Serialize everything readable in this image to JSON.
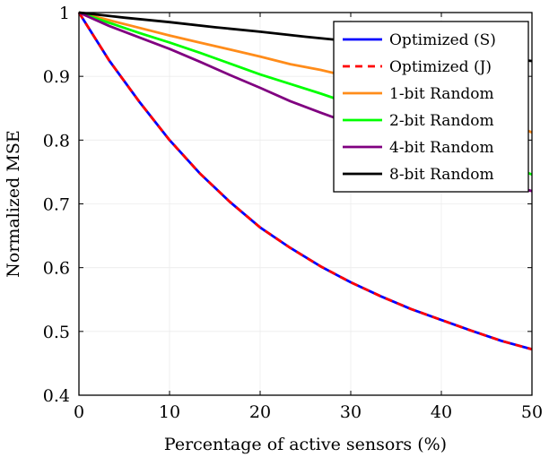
{
  "chart_data": {
    "type": "line",
    "xlabel": "Percentage of active sensors (%)",
    "ylabel": "Normalized MSE",
    "xlim": [
      0,
      50
    ],
    "ylim": [
      0.4,
      1
    ],
    "xticks": [
      "0",
      "10",
      "20",
      "30",
      "40",
      "50"
    ],
    "yticks": [
      "0.4",
      "0.5",
      "0.6",
      "0.7",
      "0.8",
      "0.9",
      "1"
    ],
    "grid": true,
    "legend_position": "top-right",
    "series": [
      {
        "name": "Optimized (S)",
        "color": "#0000ff",
        "dash": "solid",
        "x": [
          0,
          3.33,
          6.67,
          10,
          13.33,
          16.67,
          20,
          23.33,
          26.67,
          30,
          33.33,
          36.67,
          40,
          43.33,
          46.67,
          50
        ],
        "y": [
          1.0,
          0.925,
          0.86,
          0.8,
          0.748,
          0.703,
          0.663,
          0.631,
          0.602,
          0.577,
          0.555,
          0.535,
          0.518,
          0.501,
          0.485,
          0.472
        ]
      },
      {
        "name": "Optimized (J)",
        "color": "#ff0000",
        "dash": "dashed",
        "x": [
          0,
          3.33,
          6.67,
          10,
          13.33,
          16.67,
          20,
          23.33,
          26.67,
          30,
          33.33,
          36.67,
          40,
          43.33,
          46.67,
          50
        ],
        "y": [
          1.0,
          0.925,
          0.86,
          0.8,
          0.748,
          0.703,
          0.663,
          0.631,
          0.602,
          0.577,
          0.555,
          0.535,
          0.518,
          0.501,
          0.485,
          0.472
        ]
      },
      {
        "name": "1-bit Random",
        "color": "#ff8c1a",
        "dash": "solid",
        "x": [
          0,
          3.33,
          6.67,
          10,
          13.33,
          16.67,
          20,
          23.33,
          26.67,
          30,
          33.33,
          36.67,
          40,
          43.33,
          46.67,
          50
        ],
        "y": [
          1.0,
          0.988,
          0.976,
          0.964,
          0.953,
          0.942,
          0.931,
          0.919,
          0.91,
          0.899,
          0.889,
          0.876,
          0.862,
          0.847,
          0.832,
          0.812
        ]
      },
      {
        "name": "2-bit Random",
        "color": "#00ff00",
        "dash": "solid",
        "x": [
          0,
          3.33,
          6.67,
          10,
          13.33,
          16.67,
          20,
          23.33,
          26.67,
          30,
          33.33,
          36.67,
          40,
          43.33,
          46.67,
          50
        ],
        "y": [
          1.0,
          0.984,
          0.968,
          0.953,
          0.937,
          0.92,
          0.903,
          0.888,
          0.873,
          0.857,
          0.838,
          0.822,
          0.803,
          0.785,
          0.765,
          0.746
        ]
      },
      {
        "name": "4-bit Random",
        "color": "#800080",
        "dash": "solid",
        "x": [
          0,
          3.33,
          6.67,
          10,
          13.33,
          16.67,
          20,
          23.33,
          26.67,
          30,
          33.33,
          36.67,
          40,
          43.33,
          46.67,
          50
        ],
        "y": [
          1.0,
          0.979,
          0.961,
          0.943,
          0.923,
          0.902,
          0.882,
          0.861,
          0.843,
          0.826,
          0.806,
          0.788,
          0.77,
          0.752,
          0.733,
          0.72
        ]
      },
      {
        "name": "8-bit Random",
        "color": "#000000",
        "dash": "solid",
        "x": [
          0,
          5,
          10,
          15,
          20,
          25,
          30,
          35,
          40,
          45,
          50
        ],
        "y": [
          1.0,
          0.992,
          0.985,
          0.977,
          0.97,
          0.962,
          0.955,
          0.948,
          0.941,
          0.933,
          0.924
        ]
      }
    ]
  }
}
